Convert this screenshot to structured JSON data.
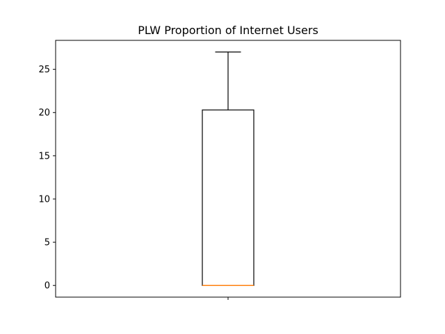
{
  "chart_data": {
    "type": "box",
    "title": "PLW Proportion of Internet Users",
    "xlabel": "",
    "ylabel": "",
    "ylim": [
      -1.35,
      28.35
    ],
    "y_ticks": [
      0,
      5,
      10,
      15,
      20,
      25
    ],
    "x_ticks": [
      ""
    ],
    "grid": false,
    "boxes": [
      {
        "whisker_low": 0,
        "q1": 0,
        "median": 0,
        "q3": 20.3,
        "whisker_high": 27
      }
    ],
    "colors": {
      "box": "#000000",
      "median": "#ff7f0e",
      "axes": "#000000"
    }
  }
}
